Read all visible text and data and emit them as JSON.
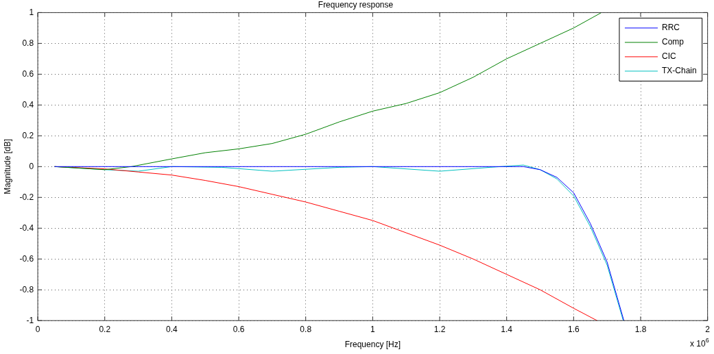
{
  "chart_data": {
    "type": "line",
    "title": "Frequency response",
    "xlabel": "Frequency [Hz]",
    "ylabel": "Magnitude [dB]",
    "annotations": [
      "x 10$^{6}$"
    ],
    "xlim": [
      0,
      2
    ],
    "xticks": [
      0,
      0.2,
      0.4,
      0.6,
      0.8,
      1,
      1.2,
      1.4,
      1.6,
      1.8,
      2
    ],
    "ylim": [
      -1,
      1
    ],
    "yticks": [
      -1,
      -0.8,
      -0.6,
      -0.4,
      -0.2,
      0,
      0.2,
      0.4,
      0.6,
      0.8,
      1
    ],
    "grid": true,
    "legend": "top right",
    "marker": "none",
    "line_style": "solid",
    "series": [
      {
        "name": "RRC",
        "color": "#0000ff",
        "x": [
          0.05,
          0.4,
          0.8,
          1.2,
          1.45,
          1.5,
          1.55,
          1.6,
          1.65,
          1.7,
          1.75
        ],
        "values": [
          0,
          0,
          0,
          0,
          0,
          -0.02,
          -0.07,
          -0.17,
          -0.37,
          -0.62,
          -1
        ]
      },
      {
        "name": "Comp",
        "color": "#008000",
        "x": [
          0.05,
          0.2,
          0.28,
          0.4,
          0.5,
          0.6,
          0.7,
          0.8,
          0.9,
          1.0,
          1.1,
          1.2,
          1.3,
          1.4,
          1.5,
          1.6,
          1.683
        ],
        "values": [
          0,
          -0.02,
          0,
          0.05,
          0.09,
          0.115,
          0.15,
          0.21,
          0.29,
          0.36,
          0.41,
          0.48,
          0.58,
          0.7,
          0.8,
          0.9,
          1
        ]
      },
      {
        "name": "CIC",
        "color": "#ff0000",
        "x": [
          0.05,
          0.2,
          0.3,
          0.4,
          0.5,
          0.6,
          0.7,
          0.8,
          0.9,
          1.0,
          1.1,
          1.2,
          1.3,
          1.4,
          1.5,
          1.6,
          1.67
        ],
        "values": [
          0,
          -0.015,
          -0.035,
          -0.055,
          -0.09,
          -0.13,
          -0.18,
          -0.23,
          -0.29,
          -0.35,
          -0.43,
          -0.51,
          -0.6,
          -0.7,
          -0.8,
          -0.92,
          -1
        ]
      },
      {
        "name": "TX-Chain",
        "color": "#00bfbf",
        "x": [
          0.05,
          0.2,
          0.3,
          0.4,
          0.55,
          0.7,
          0.9,
          1.0,
          1.2,
          1.35,
          1.45,
          1.5,
          1.55,
          1.6,
          1.65,
          1.7,
          1.748
        ],
        "values": [
          0,
          -0.02,
          -0.03,
          0,
          -0.005,
          -0.03,
          -0.005,
          0,
          -0.03,
          -0.005,
          0.01,
          -0.02,
          -0.08,
          -0.19,
          -0.39,
          -0.64,
          -1
        ]
      }
    ]
  }
}
